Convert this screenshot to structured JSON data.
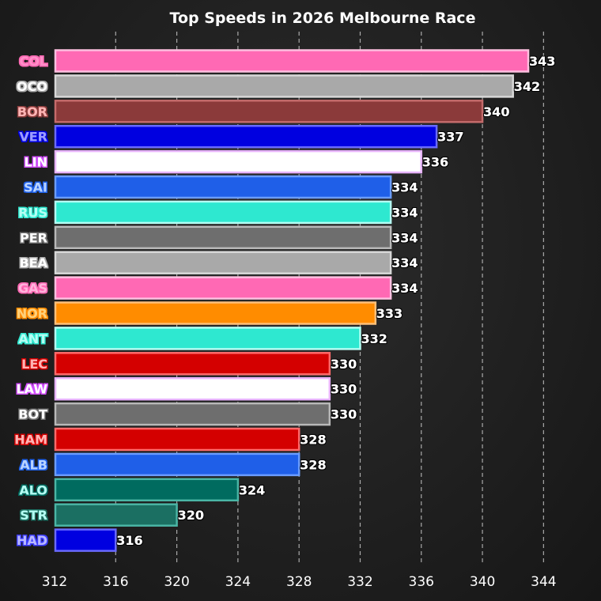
{
  "chart_data": {
    "type": "bar",
    "orientation": "horizontal",
    "title": "Top Speeds in 2026 Melbourne Race",
    "xlabel": "",
    "ylabel": "",
    "xlim": [
      312,
      346
    ],
    "xticks": [
      312,
      316,
      320,
      324,
      328,
      332,
      336,
      340,
      344
    ],
    "grid": "vertical-dashed",
    "categories": [
      "COL",
      "OCO",
      "BOR",
      "VER",
      "LIN",
      "SAI",
      "RUS",
      "PER",
      "BEA",
      "GAS",
      "NOR",
      "ANT",
      "LEC",
      "LAW",
      "BOT",
      "HAM",
      "ALB",
      "ALO",
      "STR",
      "HAD"
    ],
    "values": [
      343,
      342,
      340,
      337,
      336,
      334,
      334,
      334,
      334,
      334,
      333,
      332,
      330,
      330,
      330,
      328,
      328,
      324,
      320,
      316
    ],
    "bar_colors": [
      "#ff69b4",
      "#a9a9a9",
      "#8b3a3a",
      "#0000e0",
      "#ffffff",
      "#1f5fe8",
      "#2ee8d0",
      "#6e6e6e",
      "#a9a9a9",
      "#ff69b4",
      "#ff8c00",
      "#2ee8d0",
      "#d40000",
      "#ffffff",
      "#6e6e6e",
      "#d40000",
      "#1f5fe8",
      "#006b5f",
      "#1b6f62",
      "#0000e0"
    ],
    "bar_outline_colors": [
      "#ffc0e0",
      "#d8d8d8",
      "#c46b6b",
      "#6a6aff",
      "#e8b4ff",
      "#6a9cff",
      "#b4fff4",
      "#b8b8b8",
      "#d8d8d8",
      "#ffc0e0",
      "#ffc07a",
      "#b4fff4",
      "#ff6a6a",
      "#e8b4ff",
      "#b8b8b8",
      "#ff6a6a",
      "#6a9cff",
      "#4ab5a5",
      "#4ab5a5",
      "#6a6aff"
    ],
    "label_colors": [
      "#ff8fc8",
      "#ffffff",
      "#ffb4b4",
      "#9c9cff",
      "#ffffff",
      "#b8d4ff",
      "#b4fff4",
      "#ffffff",
      "#ffffff",
      "#ffb4dc",
      "#ffd27a",
      "#b4fff4",
      "#ffb4b4",
      "#ffffff",
      "#ffffff",
      "#ffb4b4",
      "#b8d4ff",
      "#b4fff4",
      "#b4fff4",
      "#b8b8ff"
    ],
    "label_glow_colors": [
      "#ff69b4",
      "#a9a9a9",
      "#8b3a3a",
      "#0000e0",
      "#d24dff",
      "#1f5fe8",
      "#2ee8d0",
      "#6e6e6e",
      "#a9a9a9",
      "#ff69b4",
      "#ff8c00",
      "#2ee8d0",
      "#d40000",
      "#d24dff",
      "#6e6e6e",
      "#d40000",
      "#1f5fe8",
      "#006b5f",
      "#1b6f62",
      "#3a3aff"
    ]
  }
}
